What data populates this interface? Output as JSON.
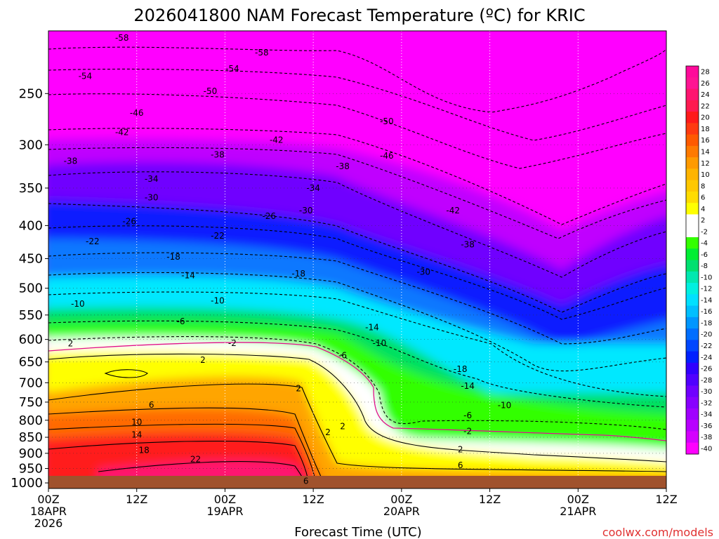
{
  "title": "2026041800 NAM Forecast Temperature (ºC) for KRIC",
  "credit": "coolwx.com/models",
  "colors": {
    "ground": "#a0522d",
    "contour": "#000000",
    "freezing_line": "#e0108a",
    "background": "#ffffff"
  },
  "chart_data": {
    "type": "heatmap",
    "title": "2026041800 NAM Forecast Temperature (ºC) for KRIC",
    "xlabel": "Forecast Time (UTC)",
    "ylabel": "",
    "x_ticks": [
      {
        "hour": 0,
        "lines": [
          "00Z",
          "18APR",
          "2026"
        ]
      },
      {
        "hour": 12,
        "lines": [
          "12Z"
        ]
      },
      {
        "hour": 24,
        "lines": [
          "00Z",
          "19APR"
        ]
      },
      {
        "hour": 36,
        "lines": [
          "12Z"
        ]
      },
      {
        "hour": 48,
        "lines": [
          "00Z",
          "20APR"
        ]
      },
      {
        "hour": 60,
        "lines": [
          "12Z"
        ]
      },
      {
        "hour": 72,
        "lines": [
          "00Z",
          "21APR"
        ]
      },
      {
        "hour": 84,
        "lines": [
          "12Z"
        ]
      }
    ],
    "xlim_hours": [
      0,
      84
    ],
    "y_ticks": [
      250,
      300,
      350,
      400,
      450,
      500,
      550,
      600,
      650,
      700,
      750,
      800,
      850,
      900,
      950,
      1000
    ],
    "ylim_hpa": [
      200,
      1020
    ],
    "y_scale": "log pressure",
    "grid": true,
    "legend": {
      "placement": "right",
      "levels": [
        "28",
        "26",
        "24",
        "22",
        "20",
        "18",
        "16",
        "14",
        "12",
        "10",
        "8",
        "6",
        "4",
        "2",
        "-2",
        "-4",
        "-6",
        "-8",
        "-10",
        "-12",
        "-14",
        "-16",
        "-18",
        "-20",
        "-22",
        "-24",
        "-26",
        "-28",
        "-30",
        "-32",
        "-34",
        "-36",
        "-38",
        "-40"
      ],
      "colors": [
        "#ff0a9a",
        "#ff1493",
        "#ff1470",
        "#ff1a50",
        "#ff1a1a",
        "#ff3a10",
        "#ff5a00",
        "#ff7a00",
        "#ff9a00",
        "#ffb400",
        "#ffc800",
        "#ffdc00",
        "#ffff00",
        "#ffffff",
        "#ffffff",
        "#33ff00",
        "#00ee33",
        "#00e070",
        "#00e8b0",
        "#00f0e0",
        "#00e0ff",
        "#00bfff",
        "#0096ff",
        "#006eff",
        "#0046ff",
        "#0020ff",
        "#3000ff",
        "#5000ff",
        "#7000ff",
        "#8800ff",
        "#a000ff",
        "#b800ff",
        "#d400ff",
        "#ff00ff"
      ]
    },
    "contour_labels": [
      {
        "hour": 10,
        "p": 205,
        "v": "-58"
      },
      {
        "hour": 29,
        "p": 216,
        "v": "-58"
      },
      {
        "hour": 5,
        "p": 235,
        "v": "-54"
      },
      {
        "hour": 25,
        "p": 229,
        "v": "-54"
      },
      {
        "hour": 22,
        "p": 248,
        "v": "-50"
      },
      {
        "hour": 46,
        "p": 276,
        "v": "-50"
      },
      {
        "hour": 12,
        "p": 268,
        "v": "-46"
      },
      {
        "hour": 46,
        "p": 312,
        "v": "-46"
      },
      {
        "hour": 10,
        "p": 287,
        "v": "-42"
      },
      {
        "hour": 31,
        "p": 295,
        "v": "-42"
      },
      {
        "hour": 55,
        "p": 379,
        "v": "-42"
      },
      {
        "hour": 3,
        "p": 318,
        "v": "-38"
      },
      {
        "hour": 23,
        "p": 311,
        "v": "-38"
      },
      {
        "hour": 40,
        "p": 324,
        "v": "-38"
      },
      {
        "hour": 57,
        "p": 428,
        "v": "-38"
      },
      {
        "hour": 14,
        "p": 339,
        "v": "-34"
      },
      {
        "hour": 36,
        "p": 350,
        "v": "-34"
      },
      {
        "hour": 14,
        "p": 362,
        "v": "-30"
      },
      {
        "hour": 35,
        "p": 379,
        "v": "-30"
      },
      {
        "hour": 51,
        "p": 472,
        "v": "-30"
      },
      {
        "hour": 11,
        "p": 394,
        "v": "-26"
      },
      {
        "hour": 30,
        "p": 387,
        "v": "-26"
      },
      {
        "hour": 6,
        "p": 423,
        "v": "-22"
      },
      {
        "hour": 23,
        "p": 415,
        "v": "-22"
      },
      {
        "hour": 17,
        "p": 447,
        "v": "-18"
      },
      {
        "hour": 34,
        "p": 475,
        "v": "-18"
      },
      {
        "hour": 56,
        "p": 667,
        "v": "-18"
      },
      {
        "hour": 19,
        "p": 478,
        "v": "-14"
      },
      {
        "hour": 44,
        "p": 575,
        "v": "-14"
      },
      {
        "hour": 57,
        "p": 708,
        "v": "-14"
      },
      {
        "hour": 4,
        "p": 529,
        "v": "-10"
      },
      {
        "hour": 23,
        "p": 523,
        "v": "-10"
      },
      {
        "hour": 45,
        "p": 608,
        "v": "-10"
      },
      {
        "hour": 62,
        "p": 759,
        "v": "-10"
      },
      {
        "hour": 18,
        "p": 563,
        "v": "-6"
      },
      {
        "hour": 40,
        "p": 635,
        "v": "-6"
      },
      {
        "hour": 57,
        "p": 787,
        "v": "-6"
      },
      {
        "hour": 3,
        "p": 609,
        "v": "2"
      },
      {
        "hour": 25,
        "p": 608,
        "v": "-2"
      },
      {
        "hour": 21,
        "p": 646,
        "v": "2"
      },
      {
        "hour": 34,
        "p": 714,
        "v": "2"
      },
      {
        "hour": 38,
        "p": 835,
        "v": "2"
      },
      {
        "hour": 40,
        "p": 818,
        "v": "2"
      },
      {
        "hour": 57,
        "p": 832,
        "v": "-2"
      },
      {
        "hour": 56,
        "p": 888,
        "v": "2"
      },
      {
        "hour": 14,
        "p": 758,
        "v": "6"
      },
      {
        "hour": 35,
        "p": 993,
        "v": "6"
      },
      {
        "hour": 56,
        "p": 939,
        "v": "6"
      },
      {
        "hour": 12,
        "p": 805,
        "v": "10"
      },
      {
        "hour": 12,
        "p": 843,
        "v": "14"
      },
      {
        "hour": 13,
        "p": 890,
        "v": "18"
      },
      {
        "hour": 20,
        "p": 919,
        "v": "22"
      }
    ]
  }
}
